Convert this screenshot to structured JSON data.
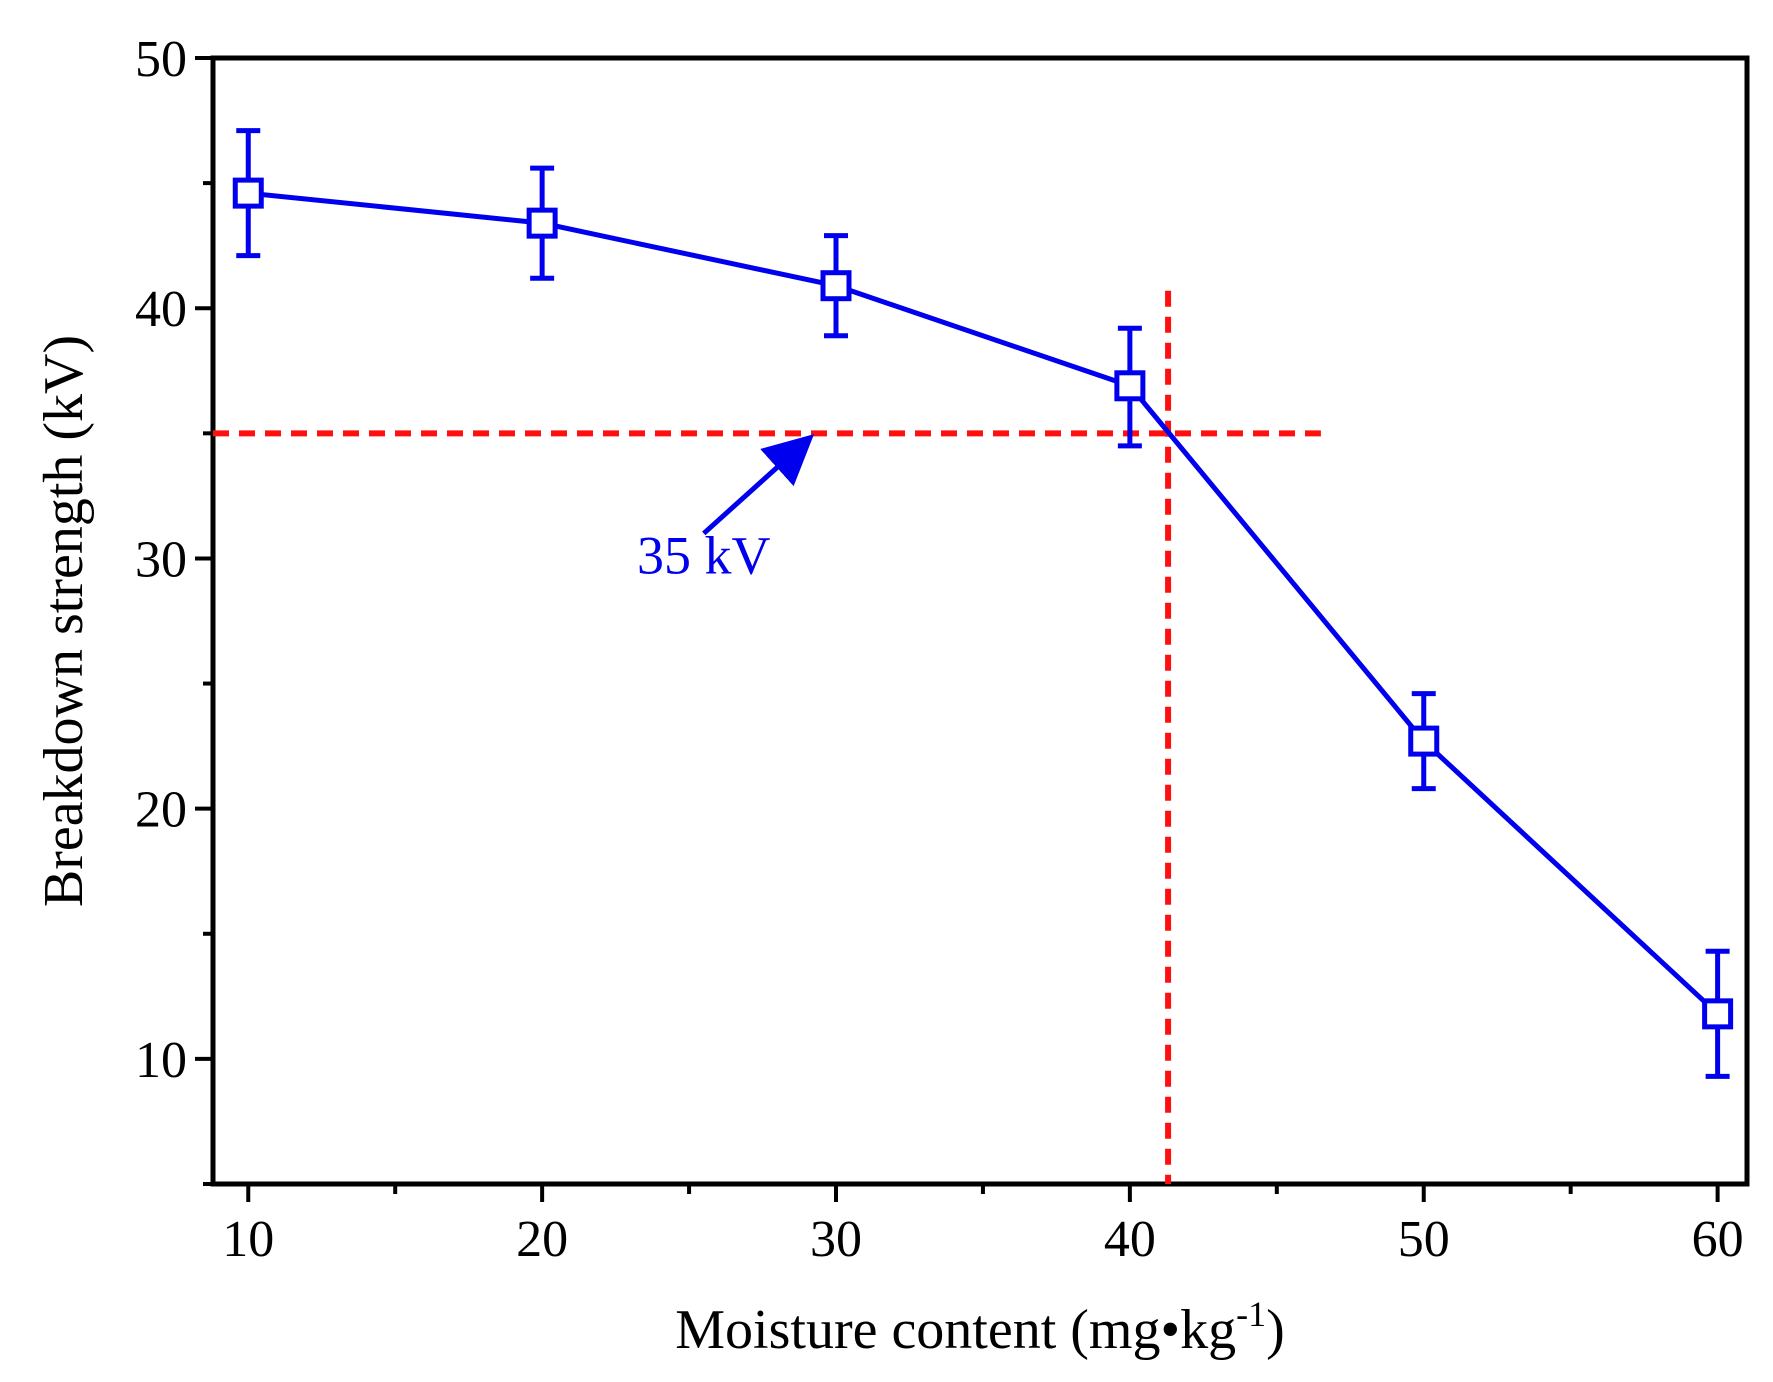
{
  "chart_data": {
    "type": "line",
    "title": "",
    "xlabel": "Moisture content (mg•kg",
    "xlabel_sup": "-1",
    "xlabel_close": ")",
    "ylabel": "Breakdown strength (kV)",
    "xlim": [
      8.8,
      61
    ],
    "ylim": [
      5,
      50
    ],
    "xticks": [
      10,
      20,
      30,
      40,
      50,
      60
    ],
    "yticks": [
      10,
      20,
      30,
      40,
      50
    ],
    "xminor": [
      15,
      25,
      35,
      45,
      55
    ],
    "yminor": [
      15,
      25,
      35,
      45
    ],
    "grid": false,
    "series": [
      {
        "name": "Breakdown strength",
        "color": "#0000ee",
        "marker": "open-square",
        "x": [
          10,
          20,
          30,
          40,
          50,
          60
        ],
        "y": [
          44.6,
          43.4,
          40.9,
          36.9,
          22.7,
          11.8
        ],
        "err_low": [
          42.1,
          41.2,
          38.9,
          34.5,
          20.8,
          9.3
        ],
        "err_high": [
          47.1,
          45.6,
          42.9,
          39.2,
          24.6,
          14.3
        ]
      }
    ],
    "reference_lines": {
      "color": "#ff1010",
      "horizontal": {
        "y": 35,
        "x_from": 8.8,
        "x_to": 46.5
      },
      "vertical": {
        "x": 41.3,
        "y_from": 5,
        "y_to": 40.7
      }
    },
    "annotation": {
      "text": "35 kV",
      "color": "#0000ee",
      "text_at": [
        25.5,
        29.4
      ],
      "arrow_from": [
        25.5,
        31
      ],
      "arrow_to": [
        29,
        34.7
      ]
    }
  }
}
